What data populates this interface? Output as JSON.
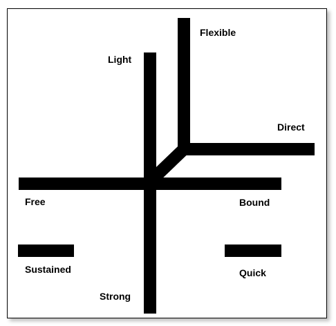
{
  "labels": {
    "flexible": "Flexible",
    "light": "Light",
    "direct": "Direct",
    "free": "Free",
    "bound": "Bound",
    "sustained": "Sustained",
    "quick": "Quick",
    "strong": "Strong"
  },
  "colors": {
    "stroke": "#000000",
    "background": "#ffffff"
  }
}
